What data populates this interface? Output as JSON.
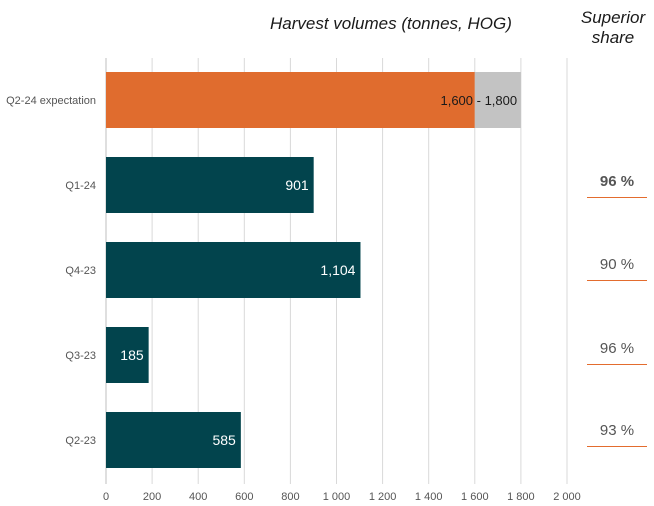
{
  "chart_data": {
    "type": "bar",
    "orientation": "horizontal",
    "title": "Harvest volumes (tonnes, HOG)",
    "categories": [
      "Q2-24 expectation",
      "Q1-24",
      "Q4-23",
      "Q3-23",
      "Q2-23"
    ],
    "values": [
      1600,
      901,
      1104,
      185,
      585
    ],
    "range_upper": [
      1800,
      null,
      null,
      null,
      null
    ],
    "value_labels": [
      "1,600 - 1,800",
      "901",
      "1,104",
      "185",
      "585"
    ],
    "xlim": [
      0,
      2000
    ],
    "x_ticks": [
      0,
      200,
      400,
      600,
      800,
      1000,
      1200,
      1400,
      1600,
      1800,
      2000
    ],
    "x_tick_labels": [
      "0",
      "200",
      "400",
      "600",
      "800",
      "1 000",
      "1 200",
      "1 400",
      "1 600",
      "1 800",
      "2 000"
    ],
    "grid": "vertical",
    "colors": {
      "expectation_bar": "#e06c2e",
      "range_bar": "#c3c3c3",
      "actual_bar": "#02444d",
      "grid": "#d9d9d9",
      "share_underline": "#e36c2e"
    }
  },
  "superior_share": {
    "title_lines": [
      "Superior",
      "share"
    ],
    "values": [
      "96 %",
      "90 %",
      "96 %",
      "93 %"
    ],
    "bold": [
      true,
      false,
      false,
      false
    ]
  }
}
